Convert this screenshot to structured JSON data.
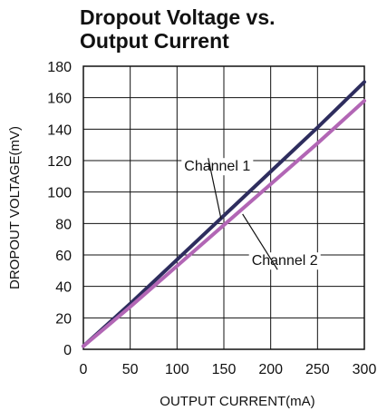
{
  "title_lines": [
    "Dropout Voltage vs.",
    "Output Current"
  ],
  "chart_data": {
    "type": "line",
    "title": "Dropout Voltage vs. Output Current",
    "xlabel": "OUTPUT CURRENT(mA)",
    "ylabel": "DROPOUT VOLTAGE(mV)",
    "xlim": [
      0,
      300
    ],
    "ylim": [
      0,
      180
    ],
    "xticks": [
      0,
      50,
      100,
      150,
      200,
      250,
      300
    ],
    "yticks": [
      0,
      20,
      40,
      60,
      80,
      100,
      120,
      140,
      160,
      180
    ],
    "grid": true,
    "series": [
      {
        "name": "Channel 1",
        "color": "#2e2d5e",
        "x": [
          0,
          50,
          100,
          150,
          200,
          250,
          300
        ],
        "y": [
          2,
          29,
          57,
          85,
          113,
          141,
          170
        ]
      },
      {
        "name": "Channel 2",
        "color": "#b266b5",
        "x": [
          0,
          50,
          100,
          150,
          200,
          250,
          300
        ],
        "y": [
          2,
          27,
          53,
          79,
          105,
          131,
          158
        ]
      }
    ],
    "annotations": [
      {
        "text": "Channel 1",
        "series": 0,
        "label_x": 143,
        "label_y": 117,
        "point_x": 147,
        "point_y": 83
      },
      {
        "text": "Channel 2",
        "series": 1,
        "label_x": 215,
        "label_y": 57,
        "point_x": 170,
        "point_y": 86
      }
    ]
  }
}
